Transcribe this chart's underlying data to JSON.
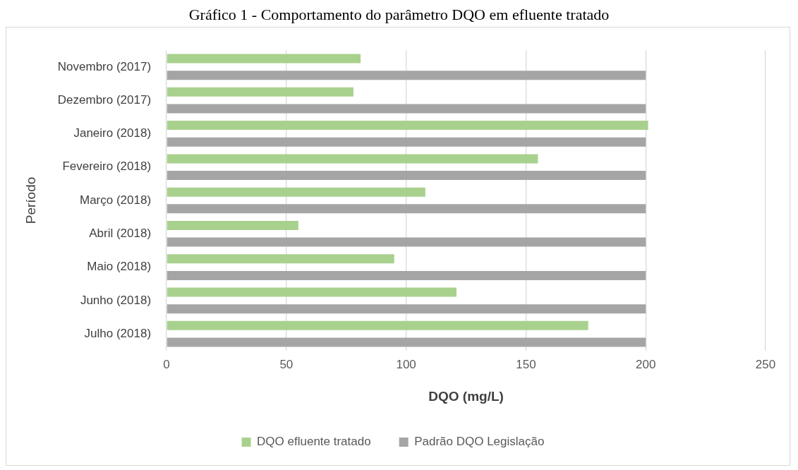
{
  "chart_data": {
    "type": "bar",
    "orientation": "horizontal",
    "title": "Gráfico 1 - Comportamento do parâmetro DQO em efluente tratado",
    "xlabel": "DQO (mg/L)",
    "ylabel": "Período",
    "categories": [
      "Novembro (2017)",
      "Dezembro (2017)",
      "Janeiro (2018)",
      "Fevereiro (2018)",
      "Março (2018)",
      "Abril (2018)",
      "Maio (2018)",
      "Junho (2018)",
      "Julho (2018)"
    ],
    "series": [
      {
        "name": "DQO efluente tratado",
        "color": "#a9d18e",
        "values": [
          81,
          78,
          201,
          155,
          108,
          55,
          95,
          121,
          176
        ]
      },
      {
        "name": "Padrão DQO Legislação",
        "color": "#a5a5a5",
        "values": [
          200,
          200,
          200,
          200,
          200,
          200,
          200,
          200,
          200
        ]
      }
    ],
    "xlim": [
      0,
      250
    ],
    "xticks": [
      0,
      50,
      100,
      150,
      200,
      250
    ],
    "grid": "x",
    "legend": "bottom"
  }
}
